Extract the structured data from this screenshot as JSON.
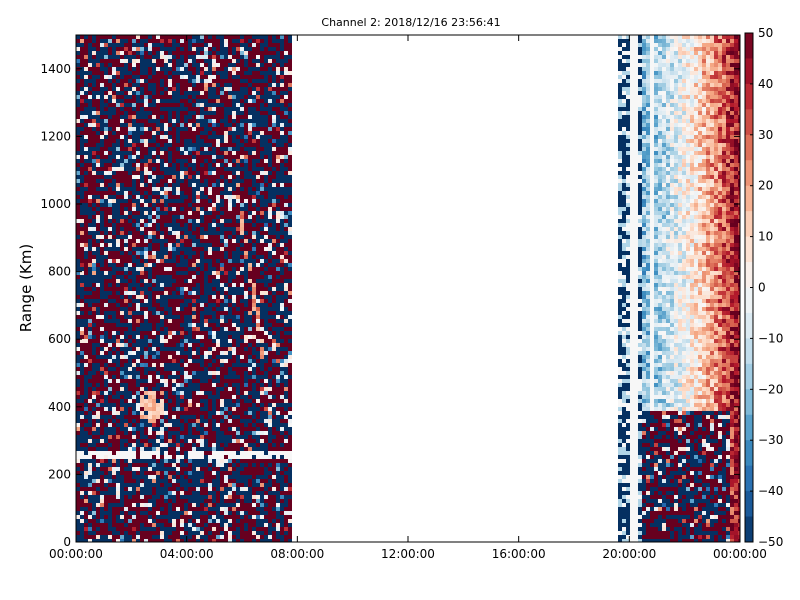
{
  "chart_data": {
    "type": "heatmap",
    "title": "Channel 2: 2018/12/16 23:56:41",
    "xlabel": "",
    "ylabel": "Range (Km)",
    "x_ticks": [
      "00:00:00",
      "04:00:00",
      "08:00:00",
      "12:00:00",
      "16:00:00",
      "20:00:00",
      "00:00:00"
    ],
    "x_range_hours": [
      0,
      24
    ],
    "y_ticks": [
      0,
      200,
      400,
      600,
      800,
      1000,
      1200,
      1400
    ],
    "ylim": [
      0,
      1500
    ],
    "colorbar": {
      "colormap": "RdBu_r",
      "range": [
        -50,
        50
      ],
      "ticks": [
        50,
        40,
        30,
        20,
        10,
        0,
        -10,
        -20,
        -30,
        -40,
        -50
      ],
      "low_color": "#053061",
      "mid_color": "#f7f7f7",
      "high_color": "#67001f"
    },
    "data_segments_hours": [
      [
        0,
        7.8
      ],
      [
        19.6,
        24
      ]
    ],
    "features": [
      {
        "desc": "warm patch",
        "time_hours": 2.7,
        "range_km": 400,
        "value": 15
      },
      {
        "desc": "diagonal warm streak",
        "time_hours_start": 5.8,
        "time_hours_end": 6.8,
        "range_km_start": 1050,
        "range_km_end": 540,
        "value": 22
      },
      {
        "desc": "gradient from negative to positive toward end of day",
        "time_hours_start": 20.5,
        "time_hours_end": 24,
        "value_start": -20,
        "value_end": 45
      }
    ],
    "grid": false
  }
}
